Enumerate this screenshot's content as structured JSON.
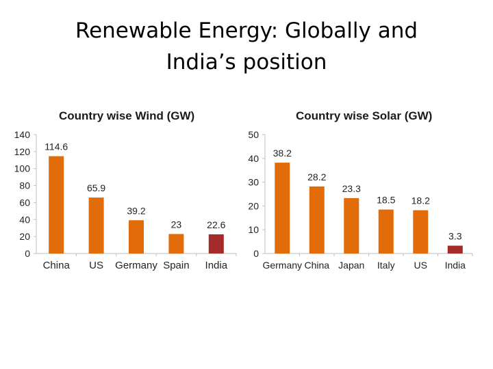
{
  "page": {
    "title_line1": "Renewable Energy: Globally and",
    "title_line2": "India’s position"
  },
  "colors": {
    "bar": "#e36c0a",
    "highlight_bar": "#a52a2a",
    "axis": "#bfbfbf"
  },
  "chart_data": [
    {
      "id": "wind",
      "type": "bar",
      "title": "Country wise Wind (GW)",
      "categories": [
        "China",
        "US",
        "Germany",
        "Spain",
        "India"
      ],
      "values": [
        114.6,
        65.9,
        39.2,
        23,
        22.6
      ],
      "value_labels": [
        "114.6",
        "65.9",
        "39.2",
        "23",
        "22.6"
      ],
      "highlight": "India",
      "ylim": [
        0,
        140
      ],
      "yticks": [
        0,
        20,
        40,
        60,
        80,
        100,
        120,
        140
      ],
      "grid": false,
      "xlabel": "",
      "ylabel": ""
    },
    {
      "id": "solar",
      "type": "bar",
      "title": "Country wise Solar (GW)",
      "categories": [
        "Germany",
        "China",
        "Japan",
        "Italy",
        "US",
        "India"
      ],
      "values": [
        38.2,
        28.2,
        23.3,
        18.5,
        18.2,
        3.3
      ],
      "value_labels": [
        "38.2",
        "28.2",
        "23.3",
        "18.5",
        "18.2",
        "3.3"
      ],
      "highlight": "India",
      "ylim": [
        0,
        50
      ],
      "yticks": [
        0,
        10,
        20,
        30,
        40,
        50
      ],
      "grid": false,
      "xlabel": "",
      "ylabel": ""
    }
  ]
}
